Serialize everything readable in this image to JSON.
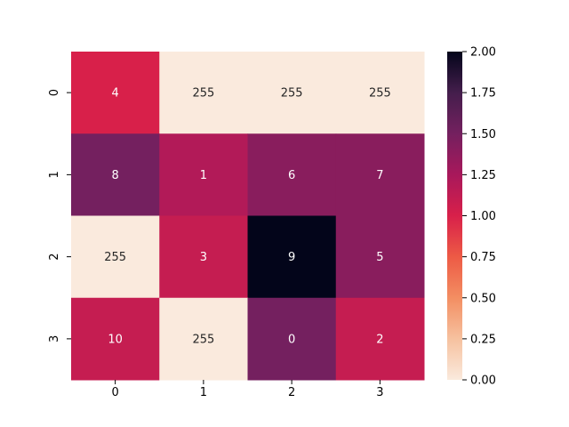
{
  "chart_data": {
    "type": "heatmap",
    "title": "",
    "xlabel": "",
    "ylabel": "",
    "x_tick_labels": [
      "0",
      "1",
      "2",
      "3"
    ],
    "y_tick_labels": [
      "0",
      "1",
      "2",
      "3"
    ],
    "cell_color_values": [
      [
        1.0,
        0.0,
        0.0,
        0.0
      ],
      [
        1.5,
        1.2,
        1.4,
        1.4
      ],
      [
        0.0,
        1.1,
        2.0,
        1.4
      ],
      [
        1.1,
        0.0,
        1.5,
        1.1
      ]
    ],
    "annotations": [
      [
        "4",
        "255",
        "255",
        "255"
      ],
      [
        "8",
        "1",
        "6",
        "7"
      ],
      [
        "255",
        "3",
        "9",
        "5"
      ],
      [
        "10",
        "255",
        "0",
        "2"
      ]
    ],
    "colorbar": {
      "range": [
        0.0,
        2.0
      ],
      "ticks": [
        "0.00",
        "0.25",
        "0.50",
        "0.75",
        "1.00",
        "1.25",
        "1.50",
        "1.75",
        "2.00"
      ]
    },
    "colormap": [
      "#faeadd",
      "#f6c19f",
      "#f38e62",
      "#ed5a45",
      "#d8204a",
      "#a8185b",
      "#74205f",
      "#441e4c",
      "#03051a"
    ],
    "annotation_color_light": "#ffffff",
    "annotation_color_dark": "#262626"
  }
}
